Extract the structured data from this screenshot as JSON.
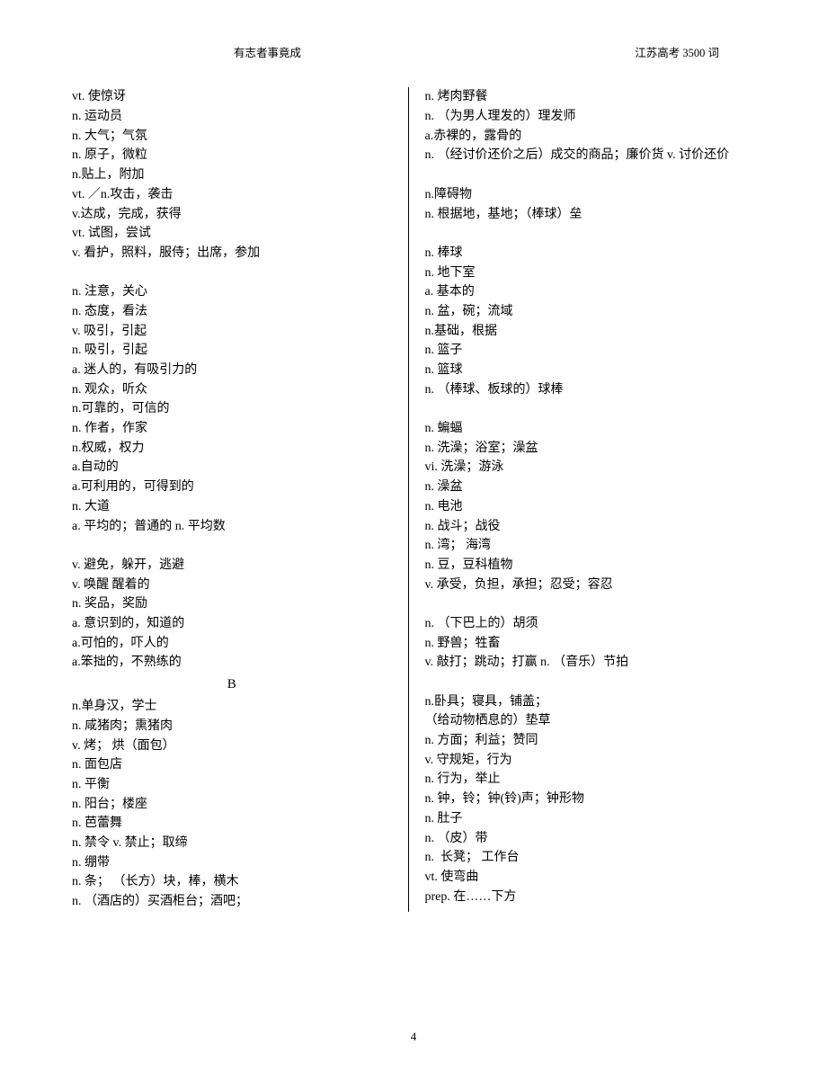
{
  "header": {
    "left": "有志者事竟成",
    "right": "江苏高考 3500 词"
  },
  "page_number": "4",
  "section_letter": "B",
  "left_column": [
    "vt. 使惊讶",
    "n. 运动员",
    "n. 大气；气氛",
    "n. 原子，微粒",
    "n.贴上，附加",
    "vt. ／n.攻击，袭击",
    "v.达成，完成，获得",
    "vt. 试图，尝试",
    "v. 看护，照料，服侍；出席，参加",
    "",
    "n. 注意，关心",
    "n. 态度，看法",
    "v. 吸引，引起",
    "n. 吸引，引起",
    "a. 迷人的，有吸引力的",
    "n. 观众，听众",
    "n.可靠的，可信的",
    "n. 作者，作家",
    "n.权威，权力",
    "a.自动的",
    "a.可利用的，可得到的",
    "n. 大道",
    "a. 平均的；普通的 n. 平均数",
    "",
    "v. 避免，躲开，逃避",
    "v. 唤醒 醒着的",
    "n. 奖品，奖励",
    "a. 意识到的，知道的",
    "a.可怕的，吓人的",
    "a.笨拙的，不熟练的",
    "__SECTION_B__",
    "n.单身汉，学士",
    "n. 咸猪肉；熏猪肉",
    "v. 烤； 烘（面包）",
    "n. 面包店",
    "n. 平衡",
    "n. 阳台；楼座",
    "n. 芭蕾舞",
    "n. 禁令 v. 禁止；取缔",
    "n. 绷带",
    "n. 条； （长方）块，棒，横木",
    "n. （酒店的）买酒柜台；酒吧；"
  ],
  "right_column": [
    "n. 烤肉野餐",
    "n. （为男人理发的）理发师",
    "a.赤裸的，露骨的",
    "n. （经讨价还价之后）成交的商品；廉价货 v. 讨价还价",
    "",
    "n.障碍物",
    "n. 根据地，基地；（棒球）垒",
    "",
    "n. 棒球",
    "n. 地下室",
    "a. 基本的",
    "n. 盆，碗；流域",
    "n.基础，根据",
    "n. 篮子",
    "n. 篮球",
    "n. （棒球、板球的）球棒",
    "",
    "n. 蝙蝠",
    "n. 洗澡；浴室；澡盆",
    "vi. 洗澡；游泳",
    "n. 澡盆",
    "n. 电池",
    "n. 战斗；战役",
    "n. 湾； 海湾",
    "n. 豆，豆科植物",
    "v. 承受，负担，承担；忍受；容忍",
    "",
    "n. （下巴上的）胡须",
    "n. 野兽；牲畜",
    "v. 敲打；跳动；打赢 n. （音乐）节拍",
    "",
    "n.卧具；寝具，铺盖；",
    "（给动物栖息的）垫草",
    "n. 方面；利益；赞同",
    "v. 守规矩，行为",
    "n. 行为，举止",
    "n. 钟，铃；钟(铃)声；钟形物",
    "n. 肚子",
    "n. （皮）带",
    "n.  长凳； 工作台",
    "vt. 使弯曲",
    "prep. 在……下方"
  ]
}
